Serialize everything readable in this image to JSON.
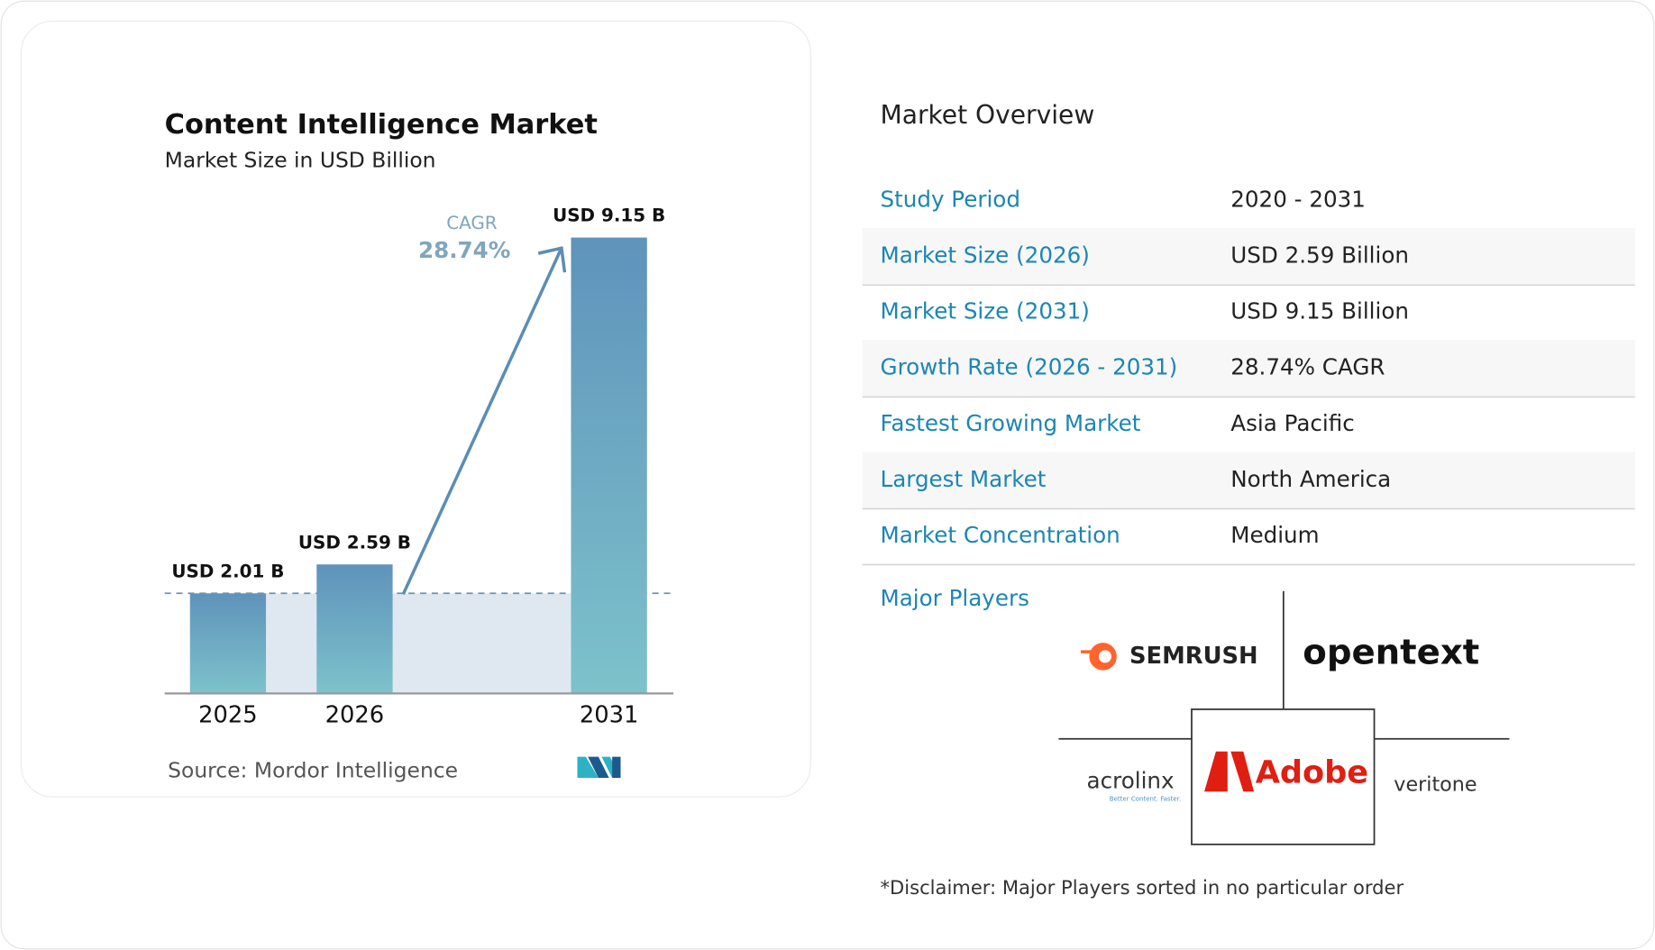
{
  "chart_data": {
    "type": "bar",
    "title": "Content Intelligence Market",
    "subtitle": "Market Size in USD Billion",
    "categories": [
      "2025",
      "2026",
      "2031"
    ],
    "values": [
      2.01,
      2.59,
      9.15
    ],
    "value_labels": [
      "USD 2.01 B",
      "USD 2.59 B",
      "USD 9.15 B"
    ],
    "cagr_label": "CAGR",
    "cagr_value": "28.74%",
    "source": "Source:  Mordor Intelligence"
  },
  "overview": {
    "title": "Market Overview",
    "rows": [
      [
        "Study Period",
        "2020 - 2031"
      ],
      [
        "Market Size (2026)",
        "USD 2.59 Billion"
      ],
      [
        "Market Size (2031)",
        "USD 9.15 Billion"
      ],
      [
        "Growth Rate (2026 - 2031)",
        "28.74% CAGR"
      ],
      [
        "Fastest Growing Market",
        "Asia Pacific"
      ],
      [
        "Largest Market",
        "North America"
      ],
      [
        "Market Concentration",
        "Medium"
      ]
    ],
    "players_title": "Major Players",
    "players": [
      "SEMRUSH",
      "opentext",
      "acrolinx",
      "Better Content. Faster.",
      "Adobe",
      "veritone"
    ],
    "disclaimer": "*Disclaimer: Major Players sorted in no particular order"
  }
}
